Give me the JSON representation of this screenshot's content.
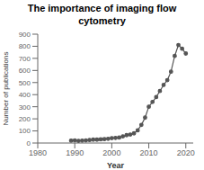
{
  "chart_data": {
    "type": "line",
    "title": "The importance of imaging flow cytometry",
    "x_label": "Year",
    "y_label": "Number of publications",
    "x": [
      1989,
      1990,
      1991,
      1992,
      1993,
      1994,
      1995,
      1996,
      1997,
      1998,
      1999,
      2000,
      2001,
      2002,
      2003,
      2004,
      2005,
      2006,
      2007,
      2008,
      2009,
      2010,
      2011,
      2012,
      2013,
      2014,
      2015,
      2016,
      2017,
      2018,
      2019,
      2020
    ],
    "values": [
      20,
      22,
      18,
      20,
      22,
      25,
      28,
      28,
      30,
      32,
      35,
      40,
      42,
      45,
      55,
      65,
      70,
      80,
      105,
      150,
      210,
      300,
      340,
      380,
      430,
      480,
      520,
      590,
      720,
      810,
      780,
      740
    ],
    "xlim": [
      1980,
      2022
    ],
    "ylim": [
      0,
      900
    ],
    "xticks": [
      1980,
      1990,
      2000,
      2010,
      2020
    ],
    "yticks": [
      0,
      100,
      200,
      300,
      400,
      500,
      600,
      700,
      800,
      900
    ],
    "color": "#555555",
    "marker": "circle",
    "line_style": "solid",
    "grid": false
  }
}
